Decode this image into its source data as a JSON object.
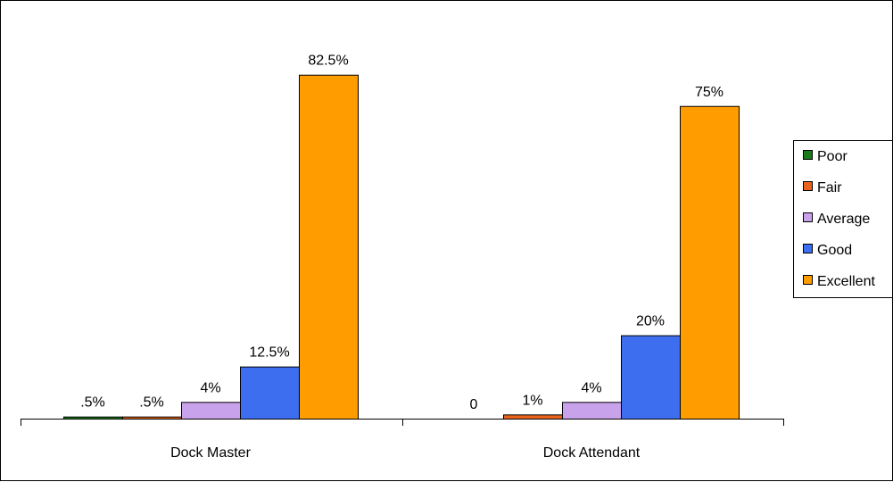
{
  "chart_data": {
    "type": "bar",
    "categories": [
      "Dock Master",
      "Dock Attendant"
    ],
    "series": [
      {
        "name": "Poor",
        "color": "#1a7a1a",
        "values": [
          0.5,
          0
        ],
        "labels": [
          ".5%",
          "0"
        ]
      },
      {
        "name": "Fair",
        "color": "#e8641c",
        "values": [
          0.5,
          1
        ],
        "labels": [
          ".5%",
          "1%"
        ]
      },
      {
        "name": "Average",
        "color": "#c8a2ea",
        "values": [
          4,
          4
        ],
        "labels": [
          "4%",
          "4%"
        ]
      },
      {
        "name": "Good",
        "color": "#3d6ef0",
        "values": [
          12.5,
          20
        ],
        "labels": [
          "12.5%",
          "20%"
        ]
      },
      {
        "name": "Excellent",
        "color": "#ff9c00",
        "values": [
          82.5,
          75
        ],
        "labels": [
          "82.5%",
          "75%"
        ]
      }
    ],
    "ylim": [
      0,
      100
    ],
    "grid": false,
    "legend": "right"
  }
}
